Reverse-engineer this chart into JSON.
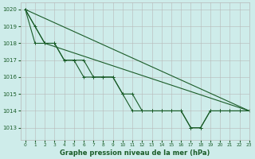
{
  "bg_color": "#ceecea",
  "grid_color": "#b8b8b8",
  "line_color": "#1a5c28",
  "xlabel": "Graphe pression niveau de la mer (hPa)",
  "xlim": [
    -0.5,
    23
  ],
  "ylim": [
    1012.3,
    1020.4
  ],
  "yticks": [
    1013,
    1014,
    1015,
    1016,
    1017,
    1018,
    1019,
    1020
  ],
  "xticks": [
    0,
    1,
    2,
    3,
    4,
    5,
    6,
    7,
    8,
    9,
    10,
    11,
    12,
    13,
    14,
    15,
    16,
    17,
    18,
    19,
    20,
    21,
    22,
    23
  ],
  "series1": [
    1020,
    1019,
    1018,
    1018,
    1017,
    1017,
    1017,
    1016,
    1016,
    1016,
    1015,
    1014,
    1014,
    1014,
    1014,
    1014,
    1014,
    1013,
    1013,
    1014,
    1014,
    1014,
    1014,
    1014
  ],
  "series2": [
    1020,
    1018,
    1018,
    1018,
    1017,
    1017,
    1016,
    1016,
    1016,
    1016,
    1015,
    1015,
    1014,
    1014,
    1014,
    1014,
    1014,
    1013,
    1013,
    1014,
    1014,
    1014,
    1014,
    1014
  ],
  "series3_smooth": [
    [
      0,
      1020
    ],
    [
      23,
      1014
    ]
  ],
  "series4_smooth": [
    [
      0,
      1020
    ],
    [
      2,
      1018
    ],
    [
      23,
      1014
    ]
  ]
}
